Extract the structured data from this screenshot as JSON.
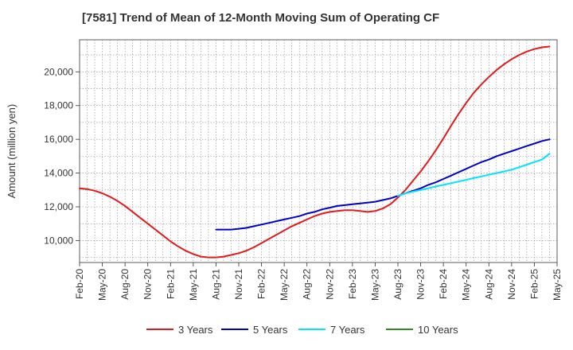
{
  "chart_data": {
    "type": "line",
    "title": "[7581]  Trend of Mean of 12-Month Moving Sum of Operating CF",
    "xlabel": "",
    "ylabel": "Amount (million yen)",
    "ylim": [
      8700,
      21900
    ],
    "y_ticks": [
      10000,
      12000,
      14000,
      16000,
      18000,
      20000
    ],
    "y_tick_labels": [
      "10,000",
      "12,000",
      "14,000",
      "16,000",
      "18,000",
      "20,000"
    ],
    "x_tick_labels": [
      "Feb-20",
      "May-20",
      "Aug-20",
      "Nov-20",
      "Feb-21",
      "May-21",
      "Aug-21",
      "Nov-21",
      "Feb-22",
      "May-22",
      "Aug-22",
      "Nov-22",
      "Feb-23",
      "May-23",
      "Aug-23",
      "Nov-23",
      "Feb-24",
      "May-24",
      "Aug-24",
      "Nov-24",
      "Feb-25",
      "May-25"
    ],
    "grid": true,
    "legend_position": "bottom",
    "series": [
      {
        "name": "3 Years",
        "color": "#e41a1c",
        "points": [
          [
            0,
            13100
          ],
          [
            1,
            13050
          ],
          [
            2,
            12950
          ],
          [
            3,
            12800
          ],
          [
            4,
            12600
          ],
          [
            5,
            12350
          ],
          [
            6,
            12050
          ],
          [
            7,
            11700
          ],
          [
            8,
            11350
          ],
          [
            9,
            11000
          ],
          [
            10,
            10650
          ],
          [
            11,
            10300
          ],
          [
            12,
            9950
          ],
          [
            13,
            9650
          ],
          [
            14,
            9400
          ],
          [
            15,
            9200
          ],
          [
            16,
            9050
          ],
          [
            17,
            9000
          ],
          [
            18,
            9000
          ],
          [
            19,
            9050
          ],
          [
            20,
            9150
          ],
          [
            21,
            9250
          ],
          [
            22,
            9400
          ],
          [
            23,
            9600
          ],
          [
            24,
            9850
          ],
          [
            25,
            10100
          ],
          [
            26,
            10350
          ],
          [
            27,
            10600
          ],
          [
            28,
            10850
          ],
          [
            29,
            11050
          ],
          [
            30,
            11250
          ],
          [
            31,
            11450
          ],
          [
            32,
            11600
          ],
          [
            33,
            11700
          ],
          [
            34,
            11750
          ],
          [
            35,
            11800
          ],
          [
            36,
            11800
          ],
          [
            37,
            11750
          ],
          [
            38,
            11700
          ],
          [
            39,
            11750
          ],
          [
            40,
            11900
          ],
          [
            41,
            12150
          ],
          [
            42,
            12550
          ],
          [
            43,
            13000
          ],
          [
            44,
            13550
          ],
          [
            45,
            14100
          ],
          [
            46,
            14700
          ],
          [
            47,
            15350
          ],
          [
            48,
            16050
          ],
          [
            49,
            16800
          ],
          [
            50,
            17500
          ],
          [
            51,
            18150
          ],
          [
            52,
            18750
          ],
          [
            53,
            19250
          ],
          [
            54,
            19700
          ],
          [
            55,
            20100
          ],
          [
            56,
            20450
          ],
          [
            57,
            20750
          ],
          [
            58,
            21000
          ],
          [
            59,
            21200
          ],
          [
            60,
            21350
          ],
          [
            61,
            21450
          ],
          [
            62,
            21500
          ]
        ]
      },
      {
        "name": "5 Years",
        "color": "#0000cc",
        "points": [
          [
            18,
            10650
          ],
          [
            19,
            10650
          ],
          [
            20,
            10650
          ],
          [
            21,
            10700
          ],
          [
            22,
            10750
          ],
          [
            23,
            10850
          ],
          [
            24,
            10950
          ],
          [
            25,
            11050
          ],
          [
            26,
            11150
          ],
          [
            27,
            11250
          ],
          [
            28,
            11350
          ],
          [
            29,
            11450
          ],
          [
            30,
            11600
          ],
          [
            31,
            11700
          ],
          [
            32,
            11850
          ],
          [
            33,
            11950
          ],
          [
            34,
            12050
          ],
          [
            35,
            12100
          ],
          [
            36,
            12150
          ],
          [
            37,
            12200
          ],
          [
            38,
            12250
          ],
          [
            39,
            12300
          ],
          [
            40,
            12400
          ],
          [
            41,
            12500
          ],
          [
            42,
            12650
          ],
          [
            43,
            12800
          ],
          [
            44,
            12950
          ],
          [
            45,
            13100
          ],
          [
            46,
            13300
          ],
          [
            47,
            13450
          ],
          [
            48,
            13650
          ],
          [
            49,
            13850
          ],
          [
            50,
            14050
          ],
          [
            51,
            14250
          ],
          [
            52,
            14450
          ],
          [
            53,
            14650
          ],
          [
            54,
            14800
          ],
          [
            55,
            15000
          ],
          [
            56,
            15150
          ],
          [
            57,
            15300
          ],
          [
            58,
            15450
          ],
          [
            59,
            15600
          ],
          [
            60,
            15750
          ],
          [
            61,
            15900
          ],
          [
            62,
            16000
          ]
        ]
      },
      {
        "name": "7 Years",
        "color": "#00e5ff",
        "points": [
          [
            42,
            12650
          ],
          [
            43,
            12800
          ],
          [
            44,
            12900
          ],
          [
            45,
            13000
          ],
          [
            46,
            13100
          ],
          [
            47,
            13200
          ],
          [
            48,
            13300
          ],
          [
            49,
            13400
          ],
          [
            50,
            13500
          ],
          [
            51,
            13600
          ],
          [
            52,
            13700
          ],
          [
            53,
            13800
          ],
          [
            54,
            13900
          ],
          [
            55,
            14000
          ],
          [
            56,
            14100
          ],
          [
            57,
            14200
          ],
          [
            58,
            14350
          ],
          [
            59,
            14500
          ],
          [
            60,
            14650
          ],
          [
            61,
            14800
          ],
          [
            62,
            15150
          ]
        ]
      },
      {
        "name": "10 Years",
        "color": "#2e8b22",
        "points": []
      }
    ]
  }
}
